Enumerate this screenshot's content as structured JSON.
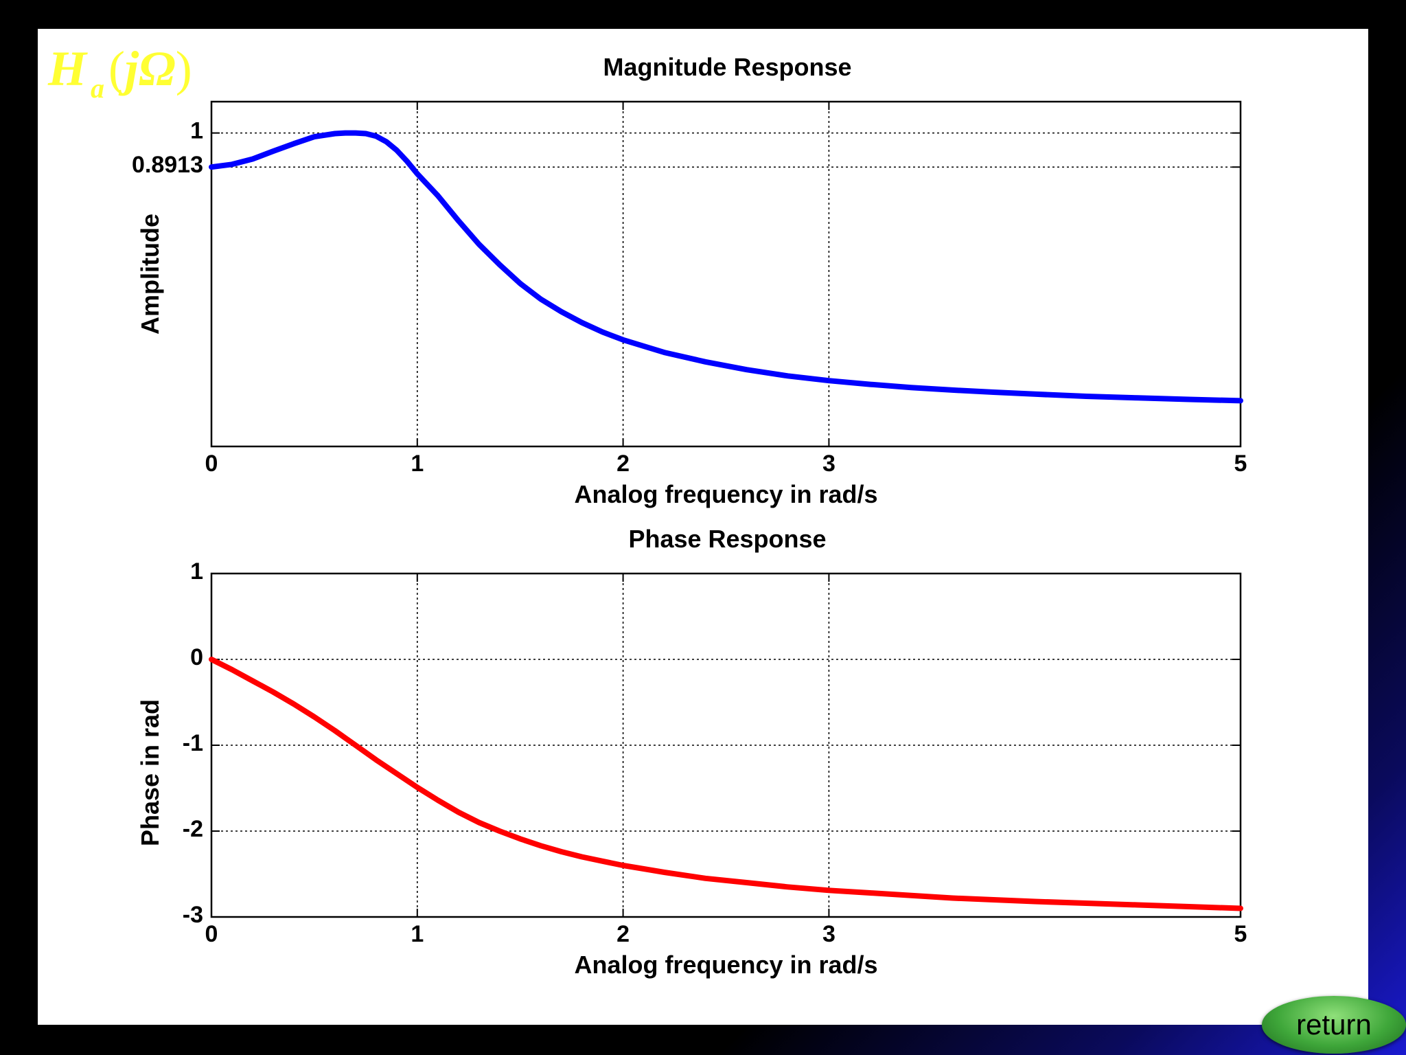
{
  "formula": {
    "main": "H",
    "sub": "a",
    "open": "(",
    "arg": "jΩ",
    "close": ")"
  },
  "return_label": "return",
  "chart_data": [
    {
      "type": "line",
      "title": "Magnitude Response",
      "xlabel": "Analog frequency in rad/s",
      "ylabel": "Amplitude",
      "xlim": [
        0,
        5
      ],
      "ylim": [
        0,
        1.1
      ],
      "xticks": [
        0,
        1,
        2,
        3,
        5
      ],
      "yticks": [
        {
          "value": 0.8913,
          "label": "0.8913"
        },
        {
          "value": 1,
          "label": "1"
        }
      ],
      "grid": true,
      "color": "#0000ff",
      "x": [
        0,
        0.1,
        0.2,
        0.3,
        0.4,
        0.5,
        0.6,
        0.65,
        0.7,
        0.75,
        0.8,
        0.85,
        0.9,
        0.95,
        1.0,
        1.1,
        1.2,
        1.3,
        1.4,
        1.5,
        1.6,
        1.7,
        1.8,
        1.9,
        2.0,
        2.2,
        2.4,
        2.6,
        2.8,
        3.0,
        3.2,
        3.4,
        3.6,
        3.8,
        4.0,
        4.25,
        4.5,
        4.75,
        5.0
      ],
      "y": [
        0.8913,
        0.9,
        0.917,
        0.942,
        0.966,
        0.988,
        0.998,
        1.0,
        1.0,
        0.998,
        0.99,
        0.972,
        0.945,
        0.91,
        0.87,
        0.8,
        0.72,
        0.645,
        0.58,
        0.52,
        0.47,
        0.43,
        0.395,
        0.365,
        0.34,
        0.3,
        0.27,
        0.245,
        0.225,
        0.21,
        0.198,
        0.188,
        0.18,
        0.173,
        0.167,
        0.16,
        0.155,
        0.15,
        0.146
      ]
    },
    {
      "type": "line",
      "title": "Phase Response",
      "xlabel": "Analog frequency in rad/s",
      "ylabel": "Phase in rad",
      "xlim": [
        0,
        5
      ],
      "ylim": [
        -3,
        1
      ],
      "xticks": [
        0,
        1,
        2,
        3,
        5
      ],
      "yticks": [
        {
          "value": -3,
          "label": "-3"
        },
        {
          "value": -2,
          "label": "-2"
        },
        {
          "value": -1,
          "label": "-1"
        },
        {
          "value": 0,
          "label": "0"
        },
        {
          "value": 1,
          "label": "1"
        }
      ],
      "grid": true,
      "color": "#ff0000",
      "x": [
        0,
        0.1,
        0.2,
        0.3,
        0.4,
        0.5,
        0.6,
        0.7,
        0.8,
        0.9,
        1.0,
        1.1,
        1.2,
        1.3,
        1.4,
        1.5,
        1.6,
        1.7,
        1.8,
        1.9,
        2.0,
        2.2,
        2.4,
        2.6,
        2.8,
        3.0,
        3.2,
        3.4,
        3.6,
        3.8,
        4.0,
        4.25,
        4.5,
        4.75,
        5.0
      ],
      "y": [
        0,
        -0.12,
        -0.25,
        -0.38,
        -0.52,
        -0.67,
        -0.83,
        -1.0,
        -1.17,
        -1.33,
        -1.49,
        -1.64,
        -1.78,
        -1.9,
        -2.0,
        -2.09,
        -2.17,
        -2.24,
        -2.3,
        -2.35,
        -2.4,
        -2.48,
        -2.55,
        -2.6,
        -2.65,
        -2.69,
        -2.72,
        -2.75,
        -2.78,
        -2.8,
        -2.82,
        -2.84,
        -2.86,
        -2.88,
        -2.9
      ]
    }
  ]
}
